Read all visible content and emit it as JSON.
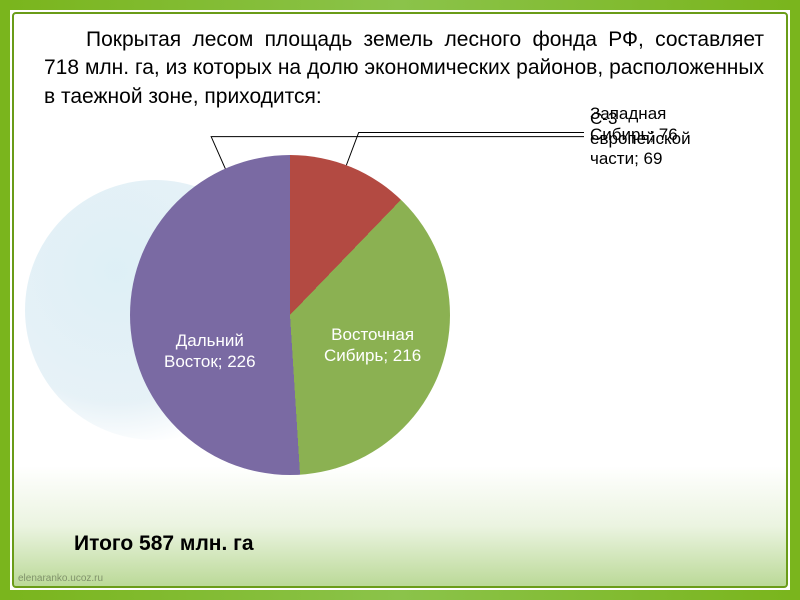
{
  "description": "Покрытая лесом площадь земель лесного фонда РФ, составляет 718 млн. га, из которых на долю экономических районов, расположенных в таежной зоне, приходится:",
  "total_text": "Итого 587 млн. га",
  "watermark": "elenaranko.ucoz.ru",
  "chart": {
    "type": "pie",
    "background_color": "#ffffff",
    "frame_outer_color": "#7ab51d",
    "frame_inner_color": "#6a9c18",
    "slices": [
      {
        "label": "С-3 европейской части",
        "value": 69,
        "color": "#4a7fb5"
      },
      {
        "label": "Западная Сибирь",
        "value": 76,
        "color": "#b34a42"
      },
      {
        "label": "Восточная Сибирь",
        "value": 216,
        "color": "#8bb152"
      },
      {
        "label": "Дальний Восток",
        "value": 226,
        "color": "#7a6aa3"
      }
    ],
    "start_angle_deg": -45,
    "label_fontsize": 17,
    "desc_fontsize": 21,
    "total_fontsize": 21
  }
}
